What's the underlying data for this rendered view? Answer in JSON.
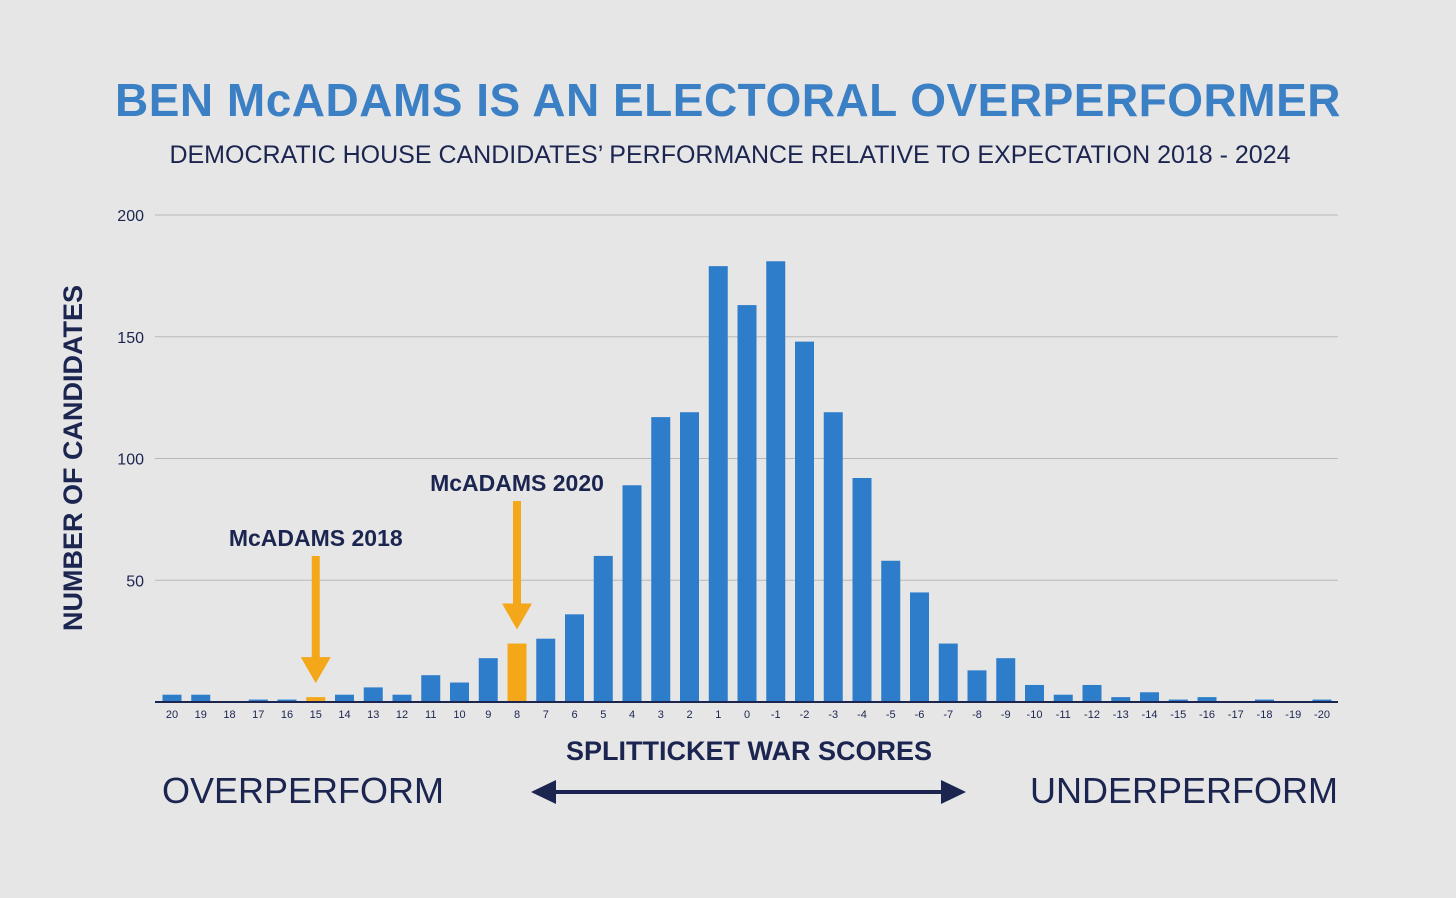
{
  "chart_data": {
    "type": "bar",
    "title": "BEN McADAMS IS AN ELECTORAL OVERPERFORMER",
    "subtitle": "DEMOCRATIC HOUSE CANDIDATES’ PERFORMANCE RELATIVE TO EXPECTATION 2018 - 2024",
    "xlabel": "SPLITTICKET WAR SCORES",
    "ylabel": "NUMBER OF CANDIDATES",
    "ylim": [
      0,
      200
    ],
    "yticks": [
      "50",
      "100",
      "150",
      "200"
    ],
    "grid": true,
    "categories": [
      "20",
      "19",
      "18",
      "17",
      "16",
      "15",
      "14",
      "13",
      "12",
      "11",
      "10",
      "9",
      "8",
      "7",
      "6",
      "5",
      "4",
      "3",
      "2",
      "1",
      "0",
      "-1",
      "-2",
      "-3",
      "-4",
      "-5",
      "-6",
      "-7",
      "-8",
      "-9",
      "-10",
      "-11",
      "-12",
      "-13",
      "-14",
      "-15",
      "-16",
      "-17",
      "-18",
      "-19",
      "-20"
    ],
    "values": [
      3,
      3,
      0,
      1,
      1,
      2,
      3,
      6,
      3,
      11,
      8,
      18,
      24,
      26,
      36,
      60,
      89,
      117,
      119,
      179,
      163,
      181,
      148,
      119,
      92,
      58,
      45,
      24,
      13,
      18,
      7,
      3,
      7,
      2,
      4,
      1,
      2,
      0,
      1,
      0,
      1
    ],
    "highlight": [
      {
        "category": "15",
        "label": "McADAMS 2018"
      },
      {
        "category": "8",
        "label": "McADAMS 2020"
      }
    ],
    "bottom_left_label": "OVERPERFORM",
    "bottom_right_label": "UNDERPERFORM"
  },
  "colors": {
    "background": "#e6e6e6",
    "bar": "#2e7dcb",
    "highlight": "#f4a819",
    "title": "#3b7fc4",
    "text": "#1b2550",
    "grid": "#b8b8b8"
  }
}
